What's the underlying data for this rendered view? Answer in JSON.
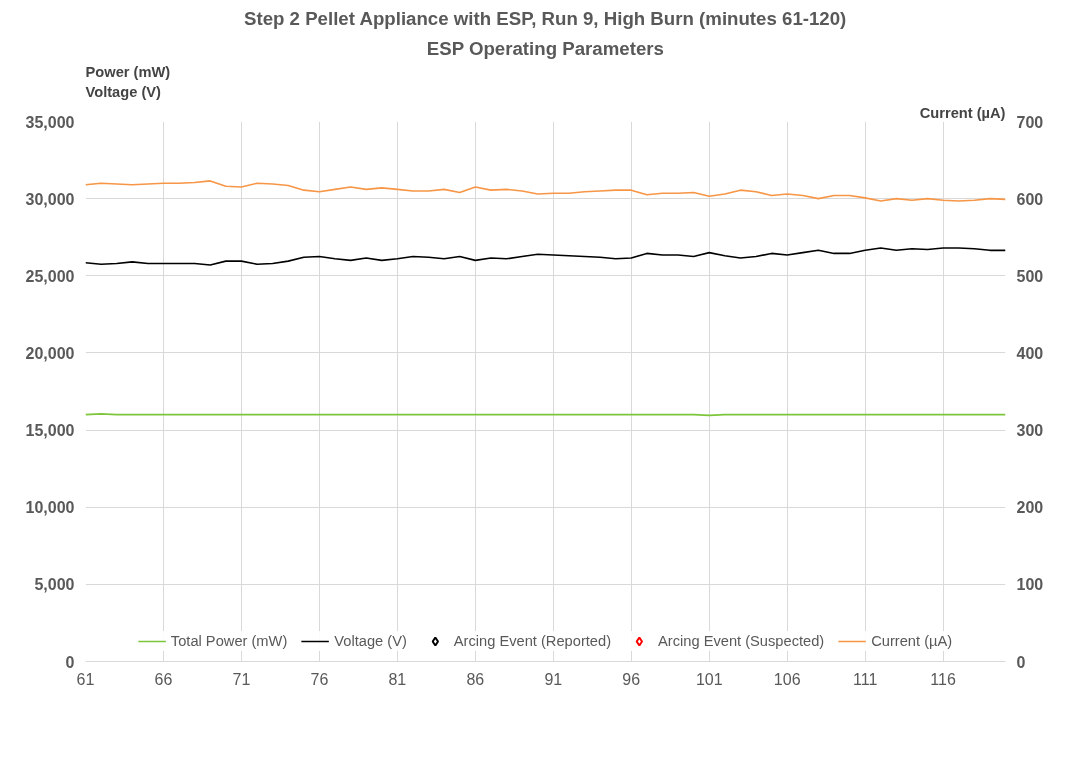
{
  "chart_data": {
    "type": "line",
    "title": "Step 2 Pellet Appliance with ESP, Run 9, High Burn (minutes 61-120)",
    "subtitle": "ESP Operating Parameters",
    "ylabel": "Power (mW)\nVoltage (V)",
    "y2label": "Current (µA)",
    "x": [
      61,
      62,
      63,
      64,
      65,
      66,
      67,
      68,
      69,
      70,
      71,
      72,
      73,
      74,
      75,
      76,
      77,
      78,
      79,
      80,
      81,
      82,
      83,
      84,
      85,
      86,
      87,
      88,
      89,
      90,
      91,
      92,
      93,
      94,
      95,
      96,
      97,
      98,
      99,
      100,
      101,
      102,
      103,
      104,
      105,
      106,
      107,
      108,
      109,
      110,
      111,
      112,
      113,
      114,
      115,
      116,
      117,
      118,
      119,
      120
    ],
    "xlim": [
      61,
      120
    ],
    "xticks": [
      61,
      66,
      71,
      76,
      81,
      86,
      91,
      96,
      101,
      106,
      111,
      116
    ],
    "ylim": [
      0,
      35000
    ],
    "yticks": [
      {
        "value": 0,
        "label": "0"
      },
      {
        "value": 5000,
        "label": "5,000"
      },
      {
        "value": 10000,
        "label": "10,000"
      },
      {
        "value": 15000,
        "label": "15,000"
      },
      {
        "value": 20000,
        "label": "20,000"
      },
      {
        "value": 25000,
        "label": "25,000"
      },
      {
        "value": 30000,
        "label": "30,000"
      },
      {
        "value": 35000,
        "label": "35,000"
      }
    ],
    "y2lim": [
      0,
      700
    ],
    "y2ticks": [
      0,
      100,
      200,
      300,
      400,
      500,
      600,
      700
    ],
    "grid": true,
    "legend": "bottom",
    "line_style": "solid",
    "series": [
      {
        "name": "Total Power (mW)",
        "color": "#7dc63c",
        "values": [
          16000,
          16050,
          16000,
          16000,
          16000,
          16000,
          16000,
          16000,
          16000,
          16000,
          16000,
          16000,
          16000,
          16000,
          16000,
          16000,
          16000,
          16000,
          16000,
          16000,
          16000,
          16000,
          16000,
          16000,
          16000,
          16000,
          16000,
          16000,
          16000,
          16000,
          16000,
          16000,
          16000,
          16000,
          16000,
          16000,
          16000,
          16000,
          16000,
          16000,
          15950,
          16000,
          16000,
          16000,
          16000,
          16000,
          16000,
          16000,
          16000,
          16000,
          16000,
          16000,
          16000,
          16000,
          16000,
          16000,
          16000,
          16000,
          16000,
          16000
        ]
      },
      {
        "name": "Voltage (V)",
        "color": "#000000",
        "values": [
          25850,
          25750,
          25800,
          25900,
          25800,
          25800,
          25800,
          25800,
          25700,
          25950,
          25950,
          25750,
          25800,
          25950,
          26200,
          26250,
          26100,
          26000,
          26150,
          26000,
          26100,
          26250,
          26200,
          26100,
          26250,
          26000,
          26150,
          26100,
          26250,
          26400,
          26350,
          26300,
          26250,
          26200,
          26100,
          26150,
          26450,
          26350,
          26350,
          26250,
          26500,
          26300,
          26150,
          26250,
          26450,
          26350,
          26500,
          26650,
          26450,
          26450,
          26650,
          26800,
          26650,
          26750,
          26700,
          26800,
          26800,
          26750,
          26650,
          26650
        ]
      },
      {
        "name": "Arcing Event (Reported)",
        "color": "#000000",
        "type": "scatter",
        "marker": "diamond",
        "values": [
          null,
          null,
          null,
          null,
          null,
          null,
          null,
          null,
          null,
          null,
          null,
          null,
          null,
          null,
          null,
          null,
          null,
          null,
          null,
          null,
          null,
          null,
          null,
          null,
          null,
          null,
          null,
          null,
          null,
          null,
          null,
          null,
          null,
          null,
          null,
          null,
          null,
          null,
          null,
          null,
          null,
          null,
          null,
          null,
          null,
          null,
          null,
          null,
          null,
          null,
          null,
          null,
          null,
          null,
          null,
          null,
          null,
          null,
          null,
          null
        ]
      },
      {
        "name": "Arcing Event (Suspected)",
        "color": "#ff0000",
        "type": "scatter",
        "marker": "diamond",
        "values": [
          null,
          null,
          null,
          null,
          null,
          null,
          null,
          null,
          null,
          null,
          null,
          null,
          null,
          null,
          null,
          null,
          null,
          null,
          null,
          null,
          null,
          null,
          null,
          null,
          null,
          null,
          null,
          null,
          null,
          null,
          null,
          null,
          null,
          null,
          null,
          null,
          null,
          null,
          null,
          null,
          null,
          null,
          null,
          null,
          null,
          null,
          null,
          null,
          null,
          null,
          null,
          null,
          null,
          null,
          null,
          null,
          null,
          null,
          null,
          null
        ]
      },
      {
        "name": "Current (µA)",
        "color": "#f79646",
        "axis": "y2",
        "values": [
          618,
          620,
          619,
          618,
          619,
          620,
          620,
          621,
          623,
          616,
          615,
          620,
          619,
          617,
          611,
          609,
          612,
          615,
          612,
          614,
          612,
          610,
          610,
          612,
          608,
          615,
          611,
          612,
          610,
          606,
          607,
          607,
          609,
          610,
          611,
          611,
          605,
          607,
          607,
          608,
          603,
          606,
          611,
          609,
          604,
          606,
          604,
          600,
          604,
          604,
          601,
          597,
          600,
          598,
          600,
          598,
          597,
          598,
          600,
          599
        ]
      }
    ]
  }
}
